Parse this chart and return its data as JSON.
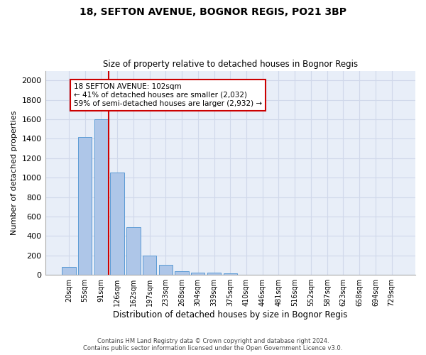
{
  "title_line1": "18, SEFTON AVENUE, BOGNOR REGIS, PO21 3BP",
  "title_line2": "Size of property relative to detached houses in Bognor Regis",
  "xlabel": "Distribution of detached houses by size in Bognor Regis",
  "ylabel": "Number of detached properties",
  "bar_labels": [
    "20sqm",
    "55sqm",
    "91sqm",
    "126sqm",
    "162sqm",
    "197sqm",
    "233sqm",
    "268sqm",
    "304sqm",
    "339sqm",
    "375sqm",
    "410sqm",
    "446sqm",
    "481sqm",
    "516sqm",
    "552sqm",
    "587sqm",
    "623sqm",
    "658sqm",
    "694sqm",
    "729sqm"
  ],
  "bar_heights": [
    80,
    1420,
    1600,
    1050,
    490,
    200,
    105,
    40,
    25,
    20,
    15,
    0,
    0,
    0,
    0,
    0,
    0,
    0,
    0,
    0,
    0
  ],
  "bar_color": "#aec6e8",
  "bar_edgecolor": "#5b9bd5",
  "vline_x": 2.45,
  "vline_color": "#cc0000",
  "annotation_text": "18 SEFTON AVENUE: 102sqm\n← 41% of detached houses are smaller (2,032)\n59% of semi-detached houses are larger (2,932) →",
  "annotation_box_color": "#ffffff",
  "annotation_box_edgecolor": "#cc0000",
  "ylim": [
    0,
    2100
  ],
  "yticks": [
    0,
    200,
    400,
    600,
    800,
    1000,
    1200,
    1400,
    1600,
    1800,
    2000
  ],
  "background_color": "#e8eef8",
  "grid_color": "#d0d8ea",
  "footer_line1": "Contains HM Land Registry data © Crown copyright and database right 2024.",
  "footer_line2": "Contains public sector information licensed under the Open Government Licence v3.0."
}
